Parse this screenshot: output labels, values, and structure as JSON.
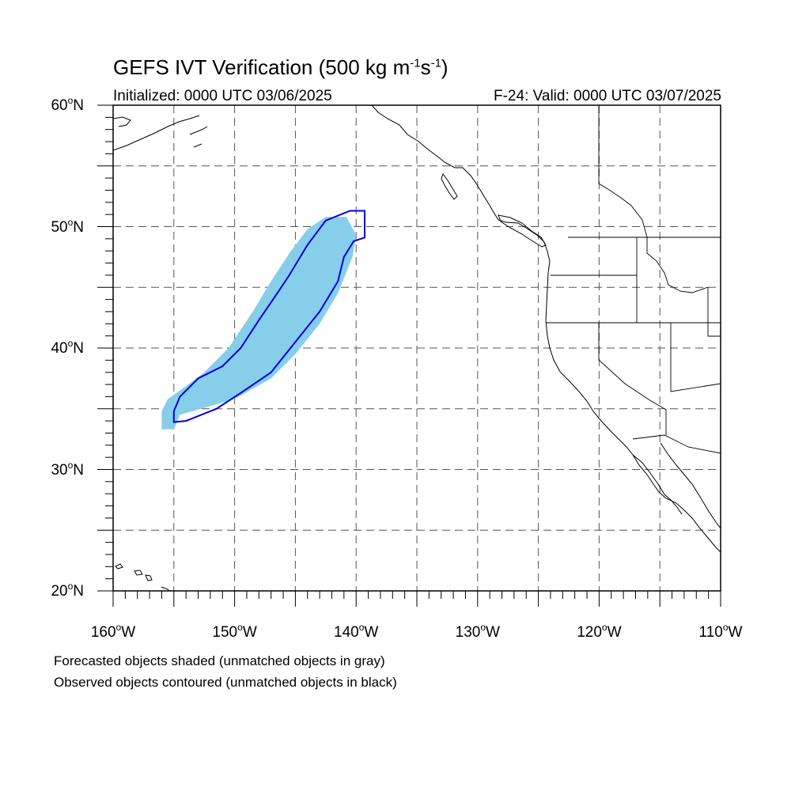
{
  "title": {
    "main": "GEFS IVT Verification (500 kg m",
    "exp1": "-1",
    "mid": "s",
    "exp2": "-1",
    "close": ")"
  },
  "subtitle": {
    "initialized": "Initialized: 0000 UTC 03/06/2025",
    "valid": "F-24: Valid: 0000 UTC 03/07/2025"
  },
  "map": {
    "projection": "cylindrical equidistant",
    "lon_range": [
      -160,
      -110
    ],
    "lat_range": [
      20,
      60
    ],
    "lat_labels": [
      {
        "value": 60,
        "num": "60",
        "hemi": "N"
      },
      {
        "value": 50,
        "num": "50",
        "hemi": "N"
      },
      {
        "value": 40,
        "num": "40",
        "hemi": "N"
      },
      {
        "value": 30,
        "num": "30",
        "hemi": "N"
      },
      {
        "value": 20,
        "num": "20",
        "hemi": "N"
      }
    ],
    "lon_labels": [
      {
        "value": -160,
        "num": "160",
        "hemi": "W"
      },
      {
        "value": -150,
        "num": "150",
        "hemi": "W"
      },
      {
        "value": -140,
        "num": "140",
        "hemi": "W"
      },
      {
        "value": -130,
        "num": "130",
        "hemi": "W"
      },
      {
        "value": -120,
        "num": "120",
        "hemi": "W"
      },
      {
        "value": -110,
        "num": "110",
        "hemi": "W"
      }
    ],
    "gridlines": "dashed every 5 degrees",
    "forecast_object": {
      "description": "forecast IVT object (matched)",
      "fill_color": "#87ceeb",
      "polygon_lonlat": [
        [
          -156.0,
          33.3
        ],
        [
          -155.0,
          33.3
        ],
        [
          -154.5,
          34.5
        ],
        [
          -150.0,
          35.8
        ],
        [
          -147.0,
          37.5
        ],
        [
          -145.0,
          39.5
        ],
        [
          -143.0,
          42.0
        ],
        [
          -141.5,
          44.5
        ],
        [
          -140.3,
          47.5
        ],
        [
          -140.0,
          49.3
        ],
        [
          -140.8,
          50.8
        ],
        [
          -142.5,
          50.8
        ],
        [
          -144.0,
          49.8
        ],
        [
          -145.5,
          47.8
        ],
        [
          -147.0,
          45.5
        ],
        [
          -148.5,
          43.0
        ],
        [
          -150.5,
          40.0
        ],
        [
          -152.5,
          38.0
        ],
        [
          -154.5,
          36.5
        ],
        [
          -155.5,
          35.8
        ],
        [
          -156.0,
          34.8
        ]
      ]
    },
    "observed_object": {
      "description": "observed IVT object (matched)",
      "stroke_color": "#0000dd",
      "polygon_lonlat": [
        [
          -155.0,
          33.9
        ],
        [
          -154.0,
          34.0
        ],
        [
          -151.5,
          35.0
        ],
        [
          -149.5,
          36.3
        ],
        [
          -147.0,
          38.0
        ],
        [
          -145.0,
          40.5
        ],
        [
          -143.0,
          43.0
        ],
        [
          -141.5,
          45.5
        ],
        [
          -141.0,
          47.5
        ],
        [
          -140.2,
          48.8
        ],
        [
          -139.3,
          49.1
        ],
        [
          -139.3,
          51.3
        ],
        [
          -140.5,
          51.3
        ],
        [
          -142.5,
          50.5
        ],
        [
          -144.0,
          48.5
        ],
        [
          -145.5,
          46.0
        ],
        [
          -146.5,
          44.5
        ],
        [
          -148.0,
          42.3
        ],
        [
          -149.5,
          40.0
        ],
        [
          -151.0,
          38.5
        ],
        [
          -153.0,
          37.5
        ],
        [
          -154.5,
          36.0
        ],
        [
          -155.0,
          34.8
        ]
      ]
    },
    "land_colors": {
      "coast": "#000000",
      "background": "#ffffff",
      "grid": "#555555"
    }
  },
  "captions": {
    "line1": "Forecasted objects shaded (unmatched objects in gray)",
    "line2": "Observed objects contoured (unmatched objects in black)"
  }
}
